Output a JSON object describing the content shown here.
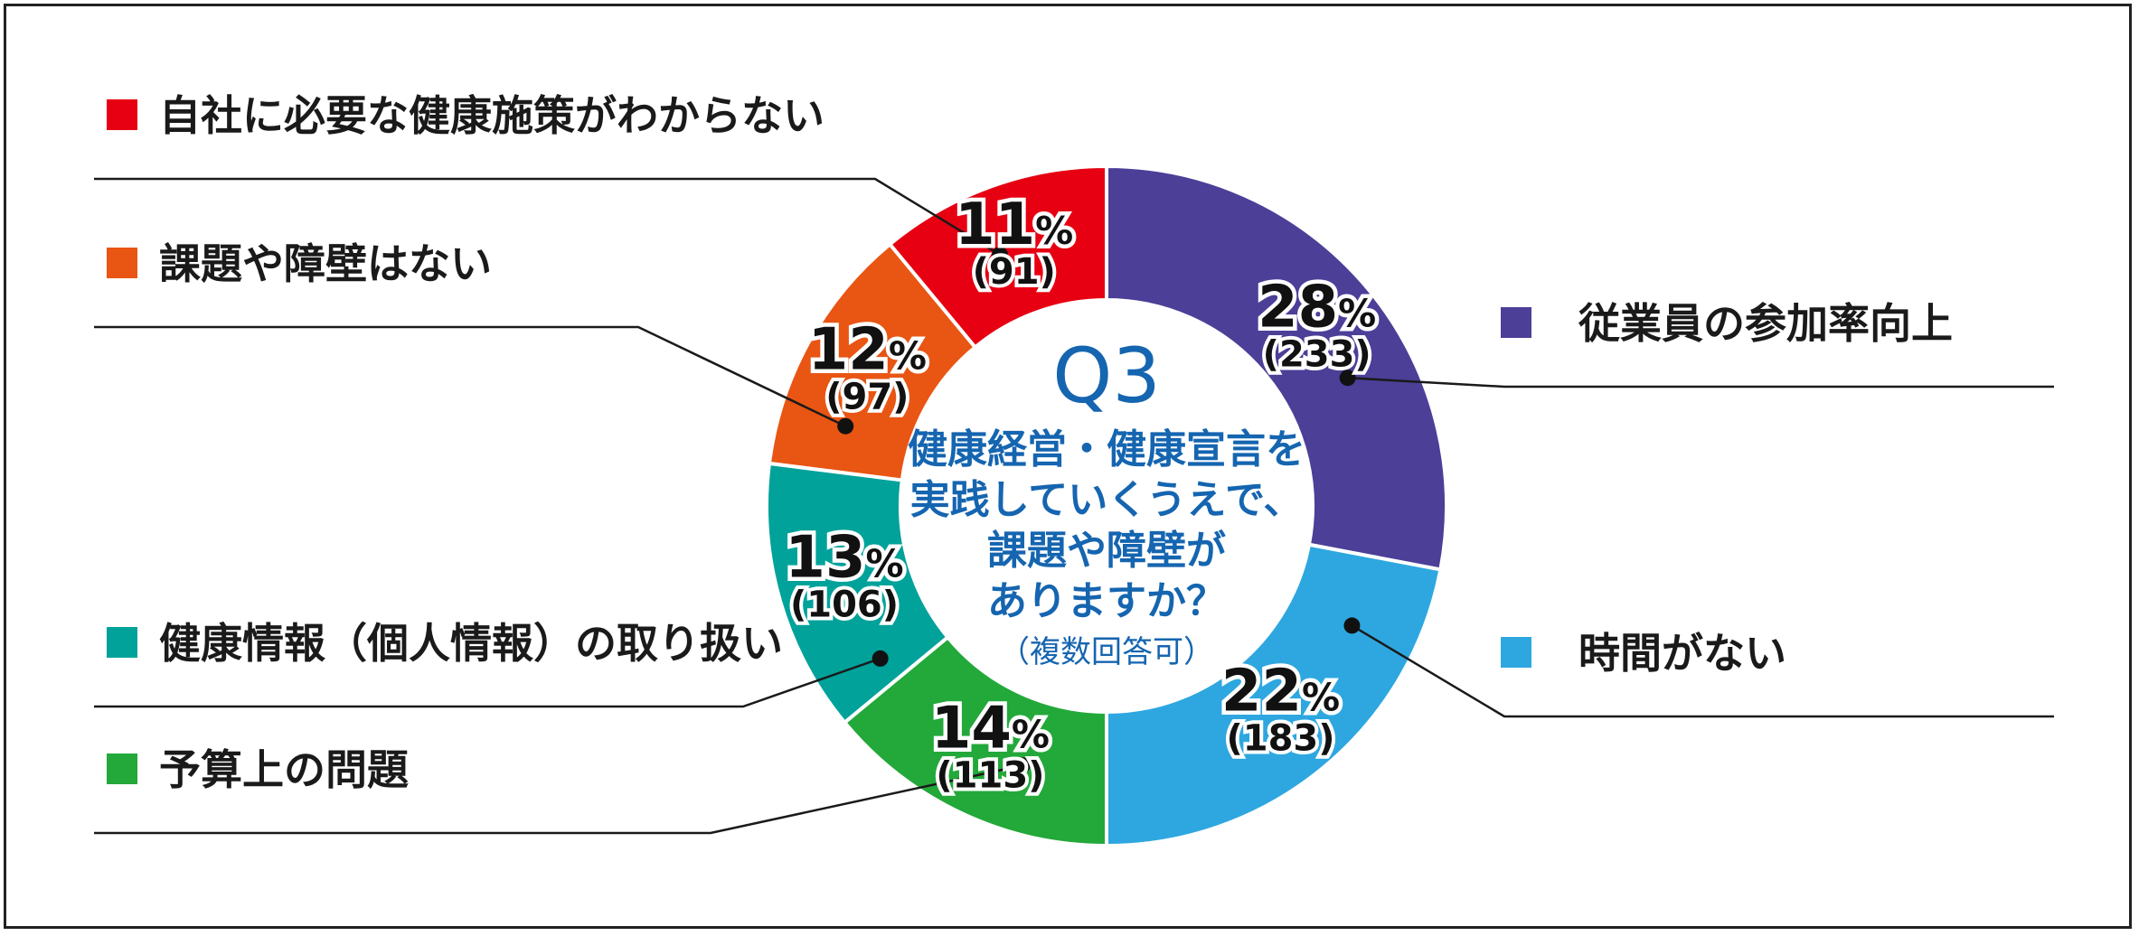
{
  "chart_data": {
    "type": "pie",
    "donut": true,
    "center": {
      "q": "Q3",
      "lines": [
        "健康経営・健康宣言を",
        "実践していくうえで、",
        "課題や障壁が",
        "ありますか？"
      ],
      "note": "（複数回答可）"
    },
    "categories": [
      "従業員の参加率向上",
      "時間がない",
      "予算上の問題",
      "健康情報（個人情報）の取り扱い",
      "課題や障壁はない",
      "自社に必要な健康施策がわからない"
    ],
    "values": [
      28,
      22,
      14,
      13,
      12,
      11
    ],
    "value_labels": [
      "28",
      "22",
      "14",
      "13",
      "12",
      "11"
    ],
    "percent_sign": "%",
    "counts": [
      "(233)",
      "(183)",
      "(113)",
      "(106)",
      "(97)",
      "(91)"
    ],
    "colors": [
      "#4b3f98",
      "#2ea7e0",
      "#23a83a",
      "#00a29a",
      "#e95513",
      "#e60012"
    ],
    "legend": "left and right with leader lines"
  }
}
